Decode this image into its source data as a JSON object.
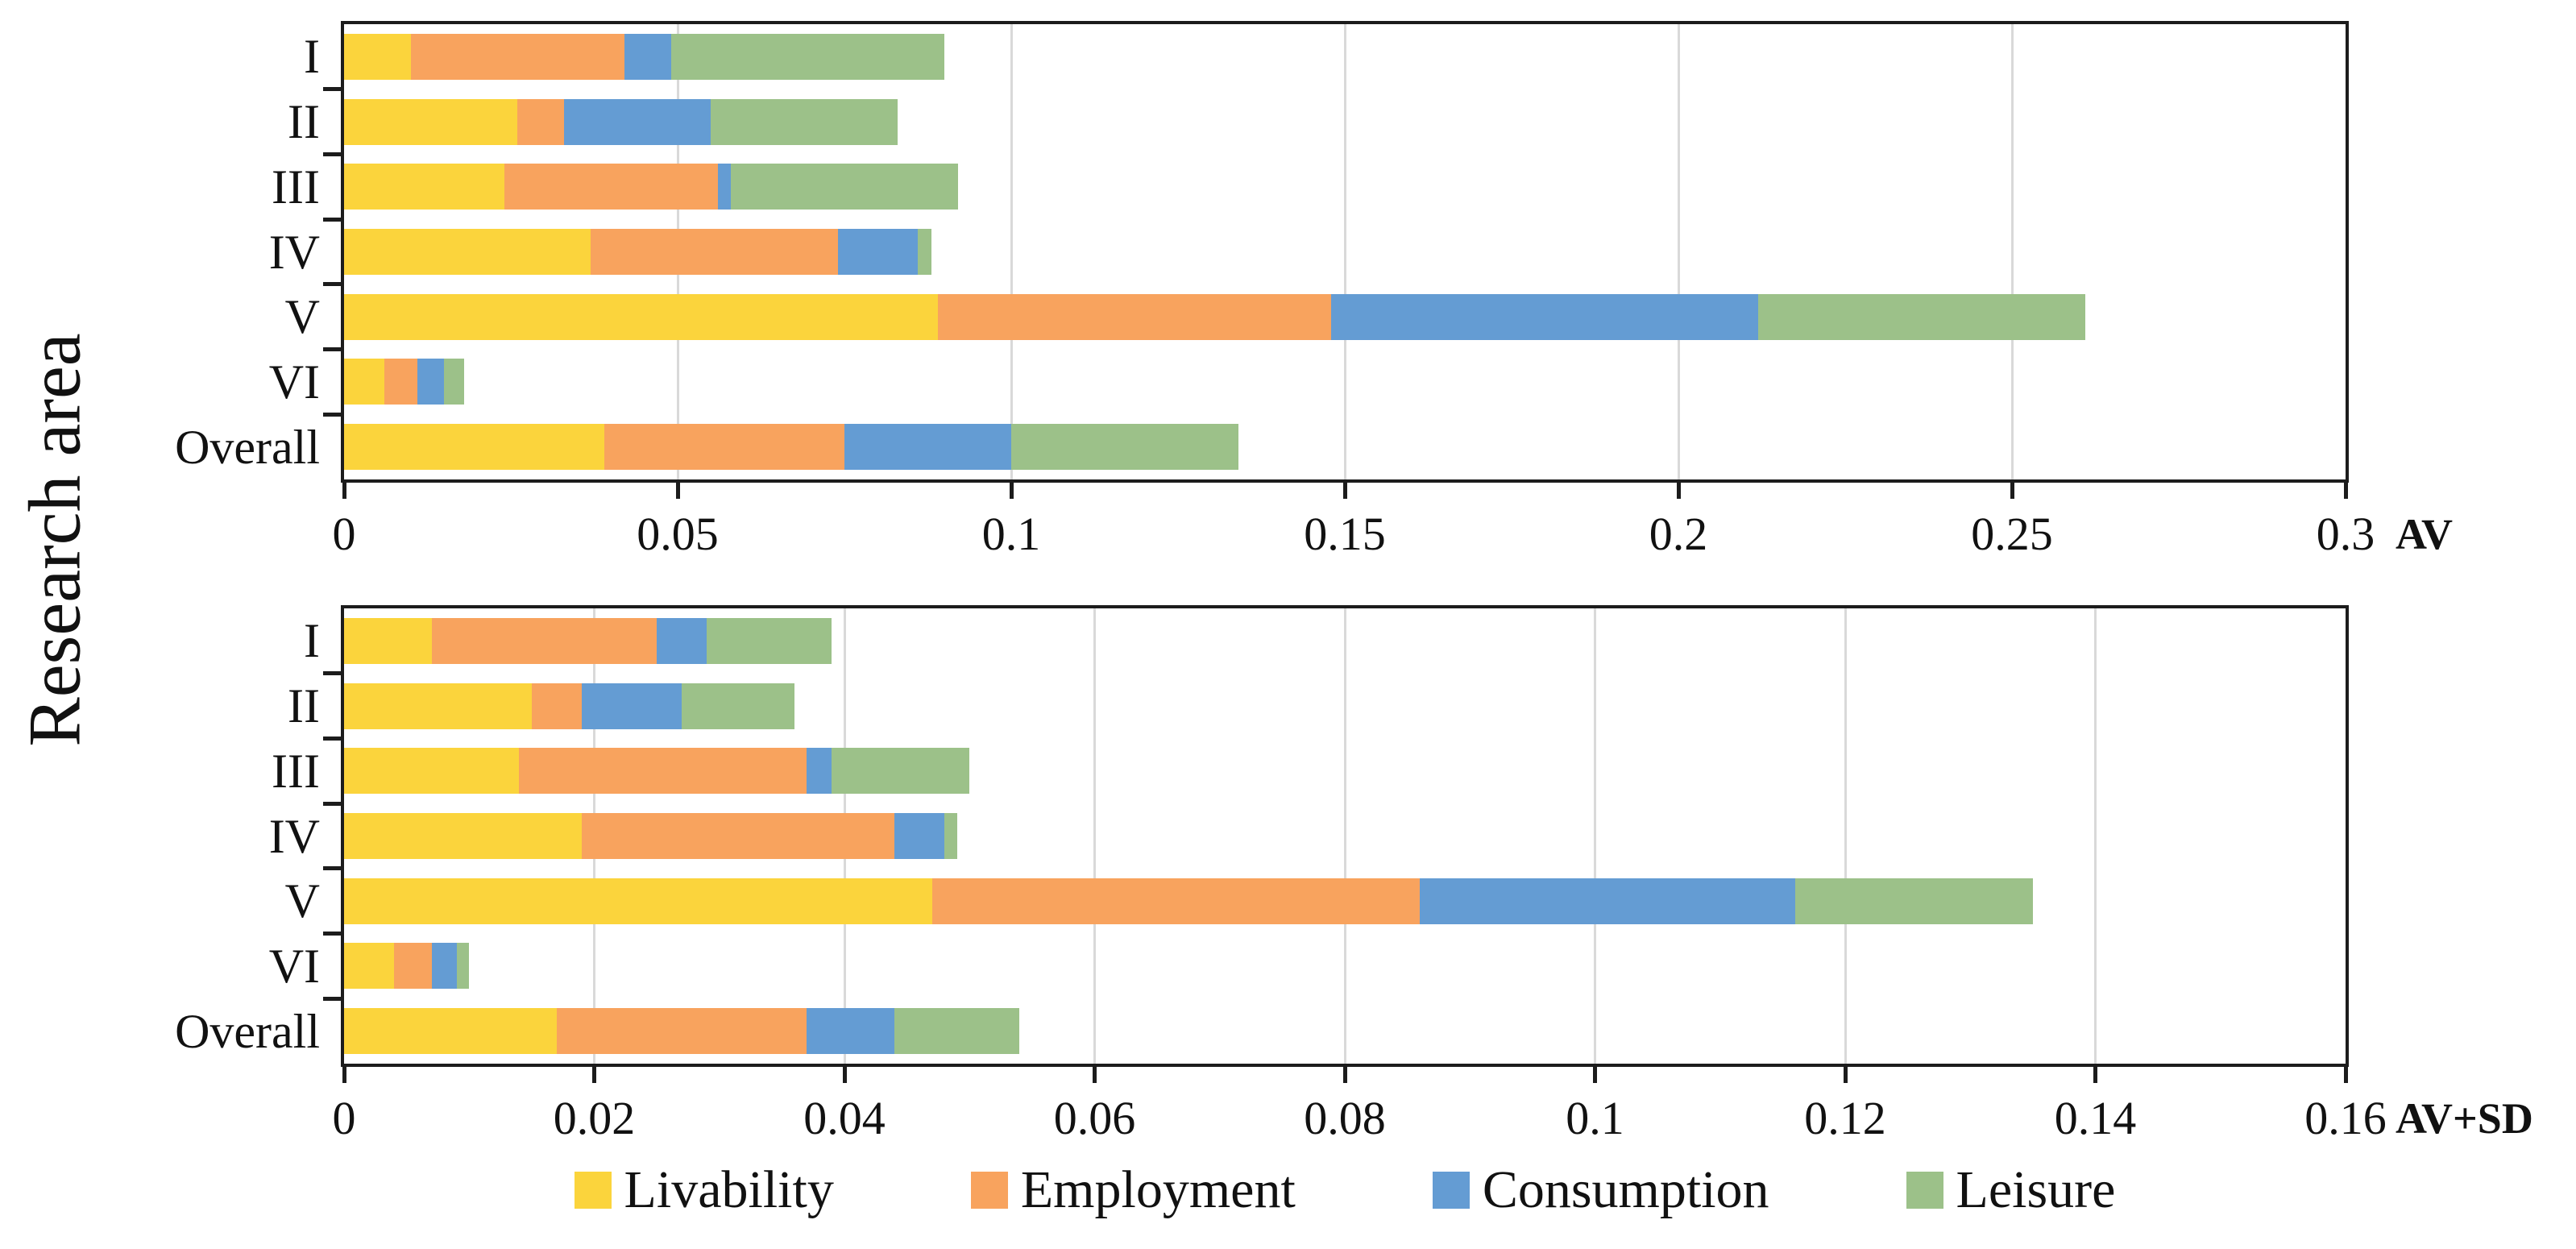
{
  "figure_title": "",
  "y_axis_label": "Research area",
  "colors": {
    "livability": "#FBD43C",
    "employment": "#F8A35E",
    "consumption": "#649CD3",
    "leisure": "#9CC189",
    "axis_line": "#1c1c1c",
    "gridline": "#d9d9d9"
  },
  "legend": [
    {
      "label": "Livability",
      "color": "#FBD43C"
    },
    {
      "label": "Employment",
      "color": "#F8A35E"
    },
    {
      "label": "Consumption",
      "color": "#649CD3"
    },
    {
      "label": "Leisure",
      "color": "#9CC189"
    }
  ],
  "chart_data": [
    {
      "type": "bar",
      "orientation": "horizontal",
      "stacked": true,
      "axis_label": "AV",
      "grid": "vertical",
      "legend_position": "bottom-shared",
      "categories": [
        "I",
        "II",
        "III",
        "IV",
        "V",
        "VI",
        "Overall"
      ],
      "xlim": [
        0,
        0.3
      ],
      "xticks": [
        0,
        0.05,
        0.1,
        0.15,
        0.2,
        0.25,
        0.3
      ],
      "xtick_labels": [
        "0",
        "0.05",
        "0.1",
        "0.15",
        "0.2",
        "0.25",
        "0.3"
      ],
      "series": [
        {
          "name": "Livability",
          "color": "#FBD43C",
          "values": [
            0.01,
            0.026,
            0.024,
            0.037,
            0.089,
            0.006,
            0.039
          ]
        },
        {
          "name": "Employment",
          "color": "#F8A35E",
          "values": [
            0.032,
            0.007,
            0.032,
            0.037,
            0.059,
            0.005,
            0.036
          ]
        },
        {
          "name": "Consumption",
          "color": "#649CD3",
          "values": [
            0.007,
            0.022,
            0.002,
            0.012,
            0.064,
            0.004,
            0.025
          ]
        },
        {
          "name": "Leisure",
          "color": "#9CC189",
          "values": [
            0.041,
            0.028,
            0.034,
            0.002,
            0.049,
            0.003,
            0.034
          ]
        }
      ]
    },
    {
      "type": "bar",
      "orientation": "horizontal",
      "stacked": true,
      "axis_label": "AV+SD",
      "grid": "vertical",
      "legend_position": "bottom-shared",
      "categories": [
        "I",
        "II",
        "III",
        "IV",
        "V",
        "VI",
        "Overall"
      ],
      "xlim": [
        0,
        0.16
      ],
      "xticks": [
        0,
        0.02,
        0.04,
        0.06,
        0.08,
        0.1,
        0.12,
        0.14,
        0.16
      ],
      "xtick_labels": [
        "0",
        "0.02",
        "0.04",
        "0.06",
        "0.08",
        "0.1",
        "0.12",
        "0.14",
        "0.16"
      ],
      "series": [
        {
          "name": "Livability",
          "color": "#FBD43C",
          "values": [
            0.007,
            0.015,
            0.014,
            0.019,
            0.047,
            0.004,
            0.017
          ]
        },
        {
          "name": "Employment",
          "color": "#F8A35E",
          "values": [
            0.018,
            0.004,
            0.023,
            0.025,
            0.039,
            0.003,
            0.02
          ]
        },
        {
          "name": "Consumption",
          "color": "#649CD3",
          "values": [
            0.004,
            0.008,
            0.002,
            0.004,
            0.03,
            0.002,
            0.007
          ]
        },
        {
          "name": "Leisure",
          "color": "#9CC189",
          "values": [
            0.01,
            0.009,
            0.011,
            0.001,
            0.019,
            0.001,
            0.01
          ]
        }
      ]
    }
  ]
}
